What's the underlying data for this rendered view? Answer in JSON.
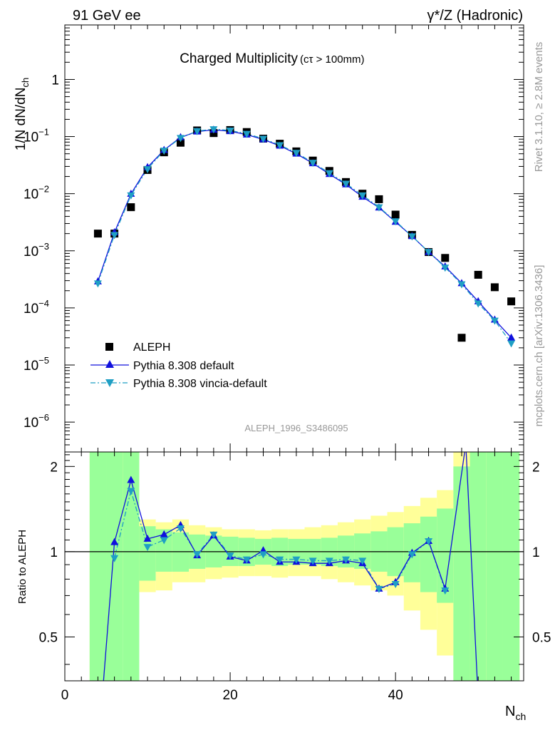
{
  "header": {
    "left": "91 GeV ee",
    "right": "γ*/Z (Hadronic)"
  },
  "side_labels": {
    "rivet": "Rivet 3.1.10, ≥ 2.8M events",
    "mcplots": "mcplots.cern.ch [arXiv:1306.3436]"
  },
  "analysis_id": "ALEPH_1996_S3486095",
  "chart_data": [
    {
      "type": "scatter",
      "title": "Charged Multiplicity",
      "subtitle": "(cτ > 100mm)",
      "ylabel": "1/N dN/dN",
      "ylabel_sub": "ch",
      "yscale": "log",
      "ylim": [
        3e-07,
        9
      ],
      "xlim": [
        0,
        55.5
      ],
      "y_ticks": [
        {
          "v": 1,
          "base": "1",
          "exp": ""
        },
        {
          "v": 0.1,
          "base": "10",
          "exp": "−1"
        },
        {
          "v": 0.01,
          "base": "10",
          "exp": "−2"
        },
        {
          "v": 0.001,
          "base": "10",
          "exp": "−3"
        },
        {
          "v": 0.0001,
          "base": "10",
          "exp": "−4"
        },
        {
          "v": 1e-05,
          "base": "10",
          "exp": "−5"
        },
        {
          "v": 1e-06,
          "base": "10",
          "exp": "−6"
        }
      ],
      "legend": {
        "position": "bottom-left"
      },
      "series": [
        {
          "name": "ALEPH",
          "color": "#000000",
          "marker": "square",
          "x": [
            4,
            6,
            8,
            10,
            12,
            14,
            16,
            18,
            20,
            22,
            24,
            26,
            28,
            30,
            32,
            34,
            36,
            38,
            40,
            42,
            44,
            46,
            48,
            50,
            52,
            54
          ],
          "y": [
            0.002,
            0.002,
            0.0058,
            0.026,
            0.053,
            0.078,
            0.128,
            0.115,
            0.13,
            0.12,
            0.092,
            0.075,
            0.055,
            0.038,
            0.025,
            0.016,
            0.01,
            0.008,
            0.0043,
            0.0019,
            0.00095,
            0.00075,
            3e-05,
            0.00038,
            0.00023,
            0.00013
          ]
        },
        {
          "name": "Pythia 8.308 default",
          "color": "#1010dd",
          "marker": "triangle-up",
          "line": "solid",
          "x": [
            4,
            6,
            8,
            10,
            12,
            14,
            16,
            18,
            20,
            22,
            24,
            26,
            28,
            30,
            32,
            34,
            36,
            38,
            40,
            42,
            44,
            46,
            48,
            50,
            52,
            54
          ],
          "y": [
            0.00029,
            0.0021,
            0.0099,
            0.029,
            0.058,
            0.097,
            0.122,
            0.131,
            0.124,
            0.108,
            0.089,
            0.069,
            0.05,
            0.034,
            0.022,
            0.0145,
            0.0088,
            0.0057,
            0.0032,
            0.0018,
            0.00095,
            0.00053,
            0.00027,
            0.00013,
            6.2e-05,
            3e-05
          ]
        },
        {
          "name": "Pythia 8.308 vincia-default",
          "color": "#1f9fc4",
          "marker": "triangle-down",
          "line": "dashdot",
          "x": [
            4,
            6,
            8,
            10,
            12,
            14,
            16,
            18,
            20,
            22,
            24,
            26,
            28,
            30,
            32,
            34,
            36,
            38,
            40,
            42,
            44,
            46,
            48,
            50,
            52,
            54
          ],
          "y": [
            0.00027,
            0.0019,
            0.0094,
            0.027,
            0.057,
            0.095,
            0.125,
            0.135,
            0.128,
            0.112,
            0.092,
            0.071,
            0.052,
            0.035,
            0.023,
            0.015,
            0.0094,
            0.0058,
            0.0033,
            0.0018,
            0.00096,
            0.00051,
            0.00026,
            0.00012,
            6e-05,
            2.4e-05
          ]
        }
      ]
    },
    {
      "type": "line",
      "ylabel": "Ratio to ALEPH",
      "xlabel": "N",
      "xlabel_sub": "ch",
      "xlim": [
        0,
        55.5
      ],
      "ylim": [
        0.35,
        2.25
      ],
      "x_ticks": [
        0,
        20,
        40
      ],
      "y_ticks": [
        0.5,
        1,
        2
      ],
      "band_x": [
        3,
        5,
        7,
        9,
        11,
        13,
        15,
        17,
        19,
        21,
        23,
        25,
        27,
        29,
        31,
        33,
        35,
        37,
        39,
        41,
        43,
        45,
        47,
        49,
        51,
        53,
        55
      ],
      "band_green_lo": [
        0.3,
        0.3,
        0.3,
        0.79,
        0.85,
        0.85,
        0.87,
        0.88,
        0.89,
        0.89,
        0.9,
        0.89,
        0.9,
        0.9,
        0.89,
        0.88,
        0.87,
        0.85,
        0.82,
        0.78,
        0.72,
        0.66,
        0.3,
        0.3,
        0.3,
        0.3
      ],
      "band_green_hi": [
        2.4,
        2.4,
        2.4,
        1.23,
        1.2,
        1.17,
        1.15,
        1.14,
        1.13,
        1.12,
        1.11,
        1.12,
        1.11,
        1.11,
        1.12,
        1.14,
        1.16,
        1.18,
        1.22,
        1.26,
        1.33,
        1.42,
        2.0,
        2.4,
        2.4,
        2.4
      ],
      "band_yellow_lo": [
        0.3,
        0.3,
        0.6,
        0.72,
        0.73,
        0.78,
        0.78,
        0.8,
        0.81,
        0.82,
        0.82,
        0.81,
        0.82,
        0.82,
        0.8,
        0.78,
        0.76,
        0.73,
        0.7,
        0.62,
        0.53,
        0.43,
        0.3,
        0.3,
        0.3,
        0.3
      ],
      "band_yellow_hi": [
        2.4,
        2.4,
        2.4,
        1.3,
        1.27,
        1.3,
        1.24,
        1.22,
        1.2,
        1.2,
        1.19,
        1.2,
        1.2,
        1.22,
        1.24,
        1.27,
        1.3,
        1.34,
        1.38,
        1.45,
        1.55,
        1.65,
        2.4,
        2.4,
        2.4,
        2.4
      ],
      "series": [
        {
          "name": "Pythia 8.308 default",
          "color": "#1010dd",
          "marker": "triangle-up",
          "x": [
            4.5,
            6,
            8,
            10,
            12,
            14,
            16,
            18,
            20,
            22,
            24,
            26,
            28,
            30,
            32,
            34,
            36,
            38,
            40,
            42,
            44,
            46,
            48.5,
            50
          ],
          "y": [
            0.3,
            1.08,
            1.79,
            1.11,
            1.15,
            1.24,
            0.97,
            1.14,
            0.96,
            0.93,
            1.01,
            0.92,
            0.92,
            0.91,
            0.91,
            0.93,
            0.91,
            0.74,
            0.78,
            0.99,
            1.09,
            0.74,
            2.4,
            0.3
          ]
        },
        {
          "name": "Pythia 8.308 vincia-default",
          "color": "#1f9fc4",
          "marker": "triangle-down",
          "x": [
            6,
            8,
            10,
            12,
            14,
            16,
            18,
            20,
            22,
            24,
            26,
            28,
            30,
            32,
            34,
            36,
            38,
            40,
            42,
            44,
            46
          ],
          "y": [
            0.95,
            1.64,
            1.04,
            1.1,
            1.21,
            0.98,
            1.15,
            0.97,
            0.94,
            0.98,
            0.94,
            0.94,
            0.93,
            0.93,
            0.94,
            0.93,
            0.74,
            0.77,
            0.98,
            1.09,
            0.73
          ]
        }
      ],
      "reference_line": 1
    }
  ]
}
